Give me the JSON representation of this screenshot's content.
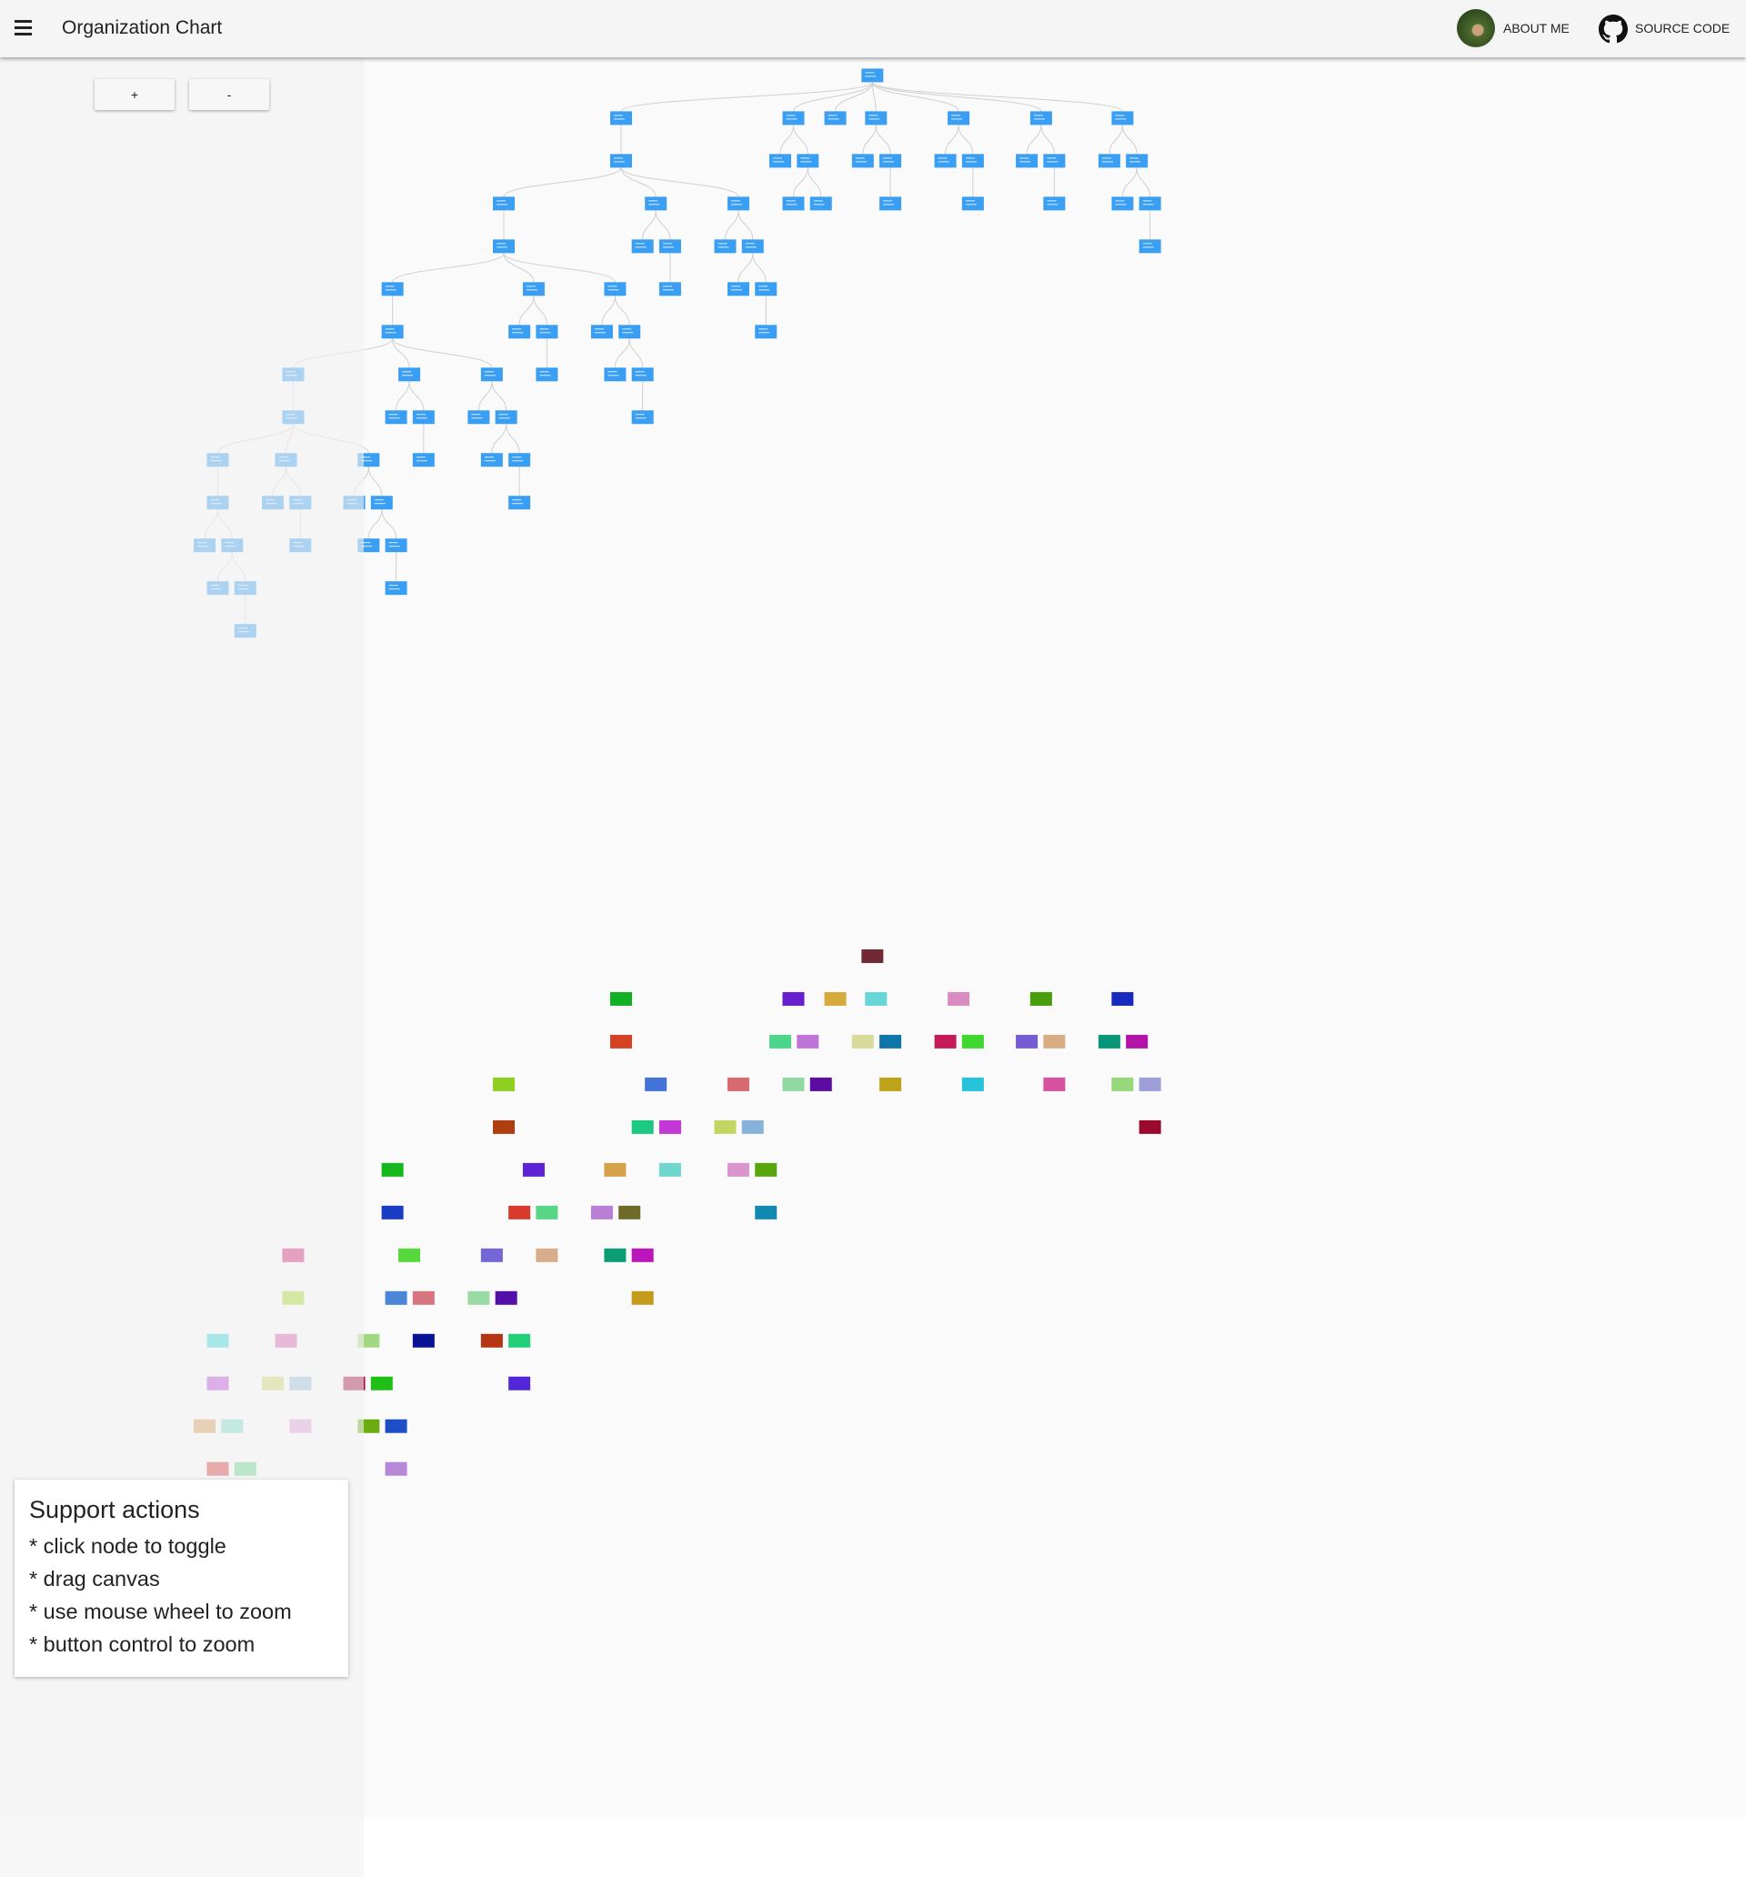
{
  "header": {
    "title": "Organization Chart",
    "links": [
      "ABOUT ME",
      "SOURCE CODE"
    ]
  },
  "zoom_buttons": [
    "+",
    "-"
  ],
  "help": {
    "title": "Support actions",
    "items": [
      "* click node to toggle",
      "* drag canvas",
      "* use mouse wheel to zoom",
      "* button control to zoom"
    ]
  }
}
